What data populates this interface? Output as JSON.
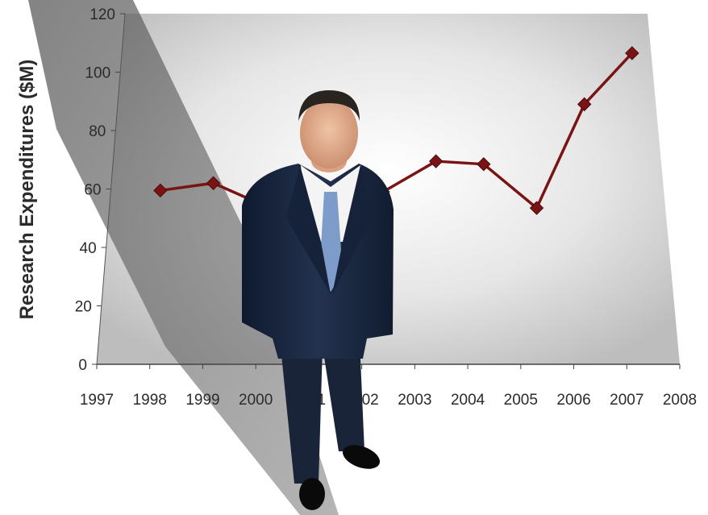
{
  "chart_data": {
    "type": "line",
    "title": "",
    "xlabel": "",
    "ylabel": "Research Expenditures ($M)",
    "xlim": [
      1997,
      2008
    ],
    "ylim": [
      0,
      120
    ],
    "x_ticks": [
      "1997",
      "1998",
      "1999",
      "2000",
      "2001",
      "2002",
      "2003",
      "2004",
      "2005",
      "2006",
      "2007",
      "2008"
    ],
    "y_ticks": [
      "0",
      "20",
      "40",
      "60",
      "80",
      "100",
      "120"
    ],
    "grid": false,
    "legend": "none",
    "series": [
      {
        "color": "#7a1414",
        "marker": "diamond",
        "x": [
          1998.2,
          1999.2,
          2000.2,
          2001.4,
          2002.4,
          2003.4,
          2004.3,
          2005.3,
          2006.2,
          2007.1
        ],
        "y": [
          59.5,
          62,
          54,
          56,
          59,
          69.5,
          68.5,
          53.5,
          89,
          106.5
        ]
      }
    ]
  }
}
